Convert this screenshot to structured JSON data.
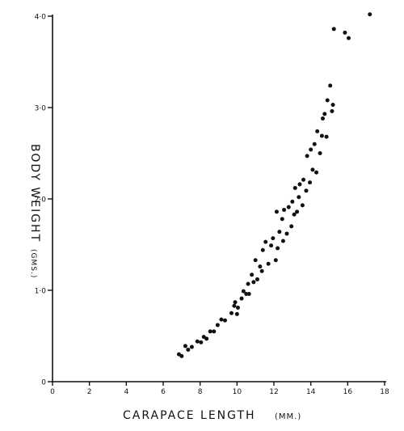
{
  "chart_data": {
    "type": "scatter",
    "title": "",
    "xlabel": "CARAPACE LENGTH",
    "xlabel_unit": "(MM.)",
    "ylabel": "BODY WEIGHT",
    "ylabel_unit": "(GMS.)",
    "xlim": [
      0,
      18
    ],
    "ylim": [
      0,
      40
    ],
    "xticks": [
      0,
      2,
      4,
      6,
      8,
      10,
      12,
      14,
      16,
      18
    ],
    "xtick_labels": [
      "0",
      "2",
      "4",
      "6",
      "8",
      "10",
      "12",
      "14",
      "16",
      "18"
    ],
    "yticks": [
      0,
      10,
      20,
      30,
      40
    ],
    "ytick_labels": [
      "0",
      "1·0",
      "2·0",
      "3·0",
      "4·0"
    ],
    "grid": false,
    "legend": "none",
    "series": [
      {
        "points": [
          [
            6.85,
            3.0
          ],
          [
            7.0,
            2.8
          ],
          [
            7.2,
            3.9
          ],
          [
            7.35,
            3.5
          ],
          [
            7.55,
            3.8
          ],
          [
            7.85,
            4.4
          ],
          [
            8.05,
            4.3
          ],
          [
            8.2,
            4.9
          ],
          [
            8.35,
            4.7
          ],
          [
            8.55,
            5.5
          ],
          [
            8.75,
            5.5
          ],
          [
            8.95,
            6.2
          ],
          [
            9.15,
            6.8
          ],
          [
            9.35,
            6.7
          ],
          [
            9.7,
            7.5
          ],
          [
            9.85,
            8.3
          ],
          [
            9.9,
            8.7
          ],
          [
            10.0,
            7.4
          ],
          [
            10.05,
            8.1
          ],
          [
            10.25,
            9.1
          ],
          [
            10.35,
            9.9
          ],
          [
            10.5,
            9.6
          ],
          [
            10.6,
            10.7
          ],
          [
            10.65,
            9.6
          ],
          [
            10.8,
            11.7
          ],
          [
            10.9,
            10.9
          ],
          [
            11.0,
            13.3
          ],
          [
            11.1,
            11.2
          ],
          [
            11.25,
            12.6
          ],
          [
            11.35,
            12.1
          ],
          [
            11.4,
            14.4
          ],
          [
            11.55,
            15.3
          ],
          [
            11.7,
            12.9
          ],
          [
            11.85,
            14.9
          ],
          [
            11.95,
            15.7
          ],
          [
            12.1,
            13.3
          ],
          [
            12.15,
            18.6
          ],
          [
            12.2,
            14.6
          ],
          [
            12.3,
            16.4
          ],
          [
            12.45,
            17.8
          ],
          [
            12.5,
            15.4
          ],
          [
            12.55,
            18.8
          ],
          [
            12.7,
            16.2
          ],
          [
            12.8,
            19.1
          ],
          [
            12.95,
            17.0
          ],
          [
            13.0,
            19.7
          ],
          [
            13.1,
            18.3
          ],
          [
            13.15,
            21.2
          ],
          [
            13.25,
            18.6
          ],
          [
            13.35,
            20.2
          ],
          [
            13.4,
            21.6
          ],
          [
            13.55,
            19.3
          ],
          [
            13.6,
            22.1
          ],
          [
            13.75,
            20.9
          ],
          [
            13.8,
            24.7
          ],
          [
            13.95,
            21.8
          ],
          [
            14.0,
            25.4
          ],
          [
            14.1,
            23.2
          ],
          [
            14.2,
            26.0
          ],
          [
            14.3,
            22.9
          ],
          [
            14.35,
            27.4
          ],
          [
            14.5,
            25.0
          ],
          [
            14.6,
            26.9
          ],
          [
            14.65,
            28.8
          ],
          [
            14.75,
            29.3
          ],
          [
            14.85,
            26.8
          ],
          [
            14.9,
            30.8
          ],
          [
            15.05,
            32.4
          ],
          [
            15.15,
            29.6
          ],
          [
            15.2,
            30.3
          ],
          [
            15.25,
            38.6
          ],
          [
            15.85,
            38.2
          ],
          [
            16.05,
            37.6
          ],
          [
            17.2,
            40.2
          ]
        ]
      }
    ]
  }
}
